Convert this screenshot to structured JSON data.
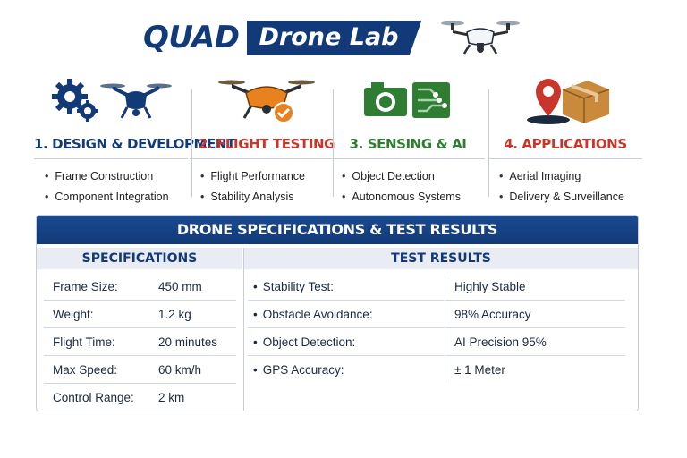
{
  "header": {
    "title_main": "QUAD",
    "title_banner": "Drone Lab"
  },
  "colors": {
    "navy": "#123a78",
    "red": "#c8352b",
    "green": "#2e7d32",
    "orange": "#e8821e"
  },
  "categories": [
    {
      "title": "1. DESIGN & DEVELOPMENT",
      "color": "#123a78",
      "icon": "gears-drone-icon",
      "items": [
        "Frame Construction",
        "Component Integration"
      ]
    },
    {
      "title": "2. FLIGHT TESTING",
      "color": "#c8352b",
      "icon": "drone-check-icon",
      "items": [
        "Flight Performance",
        "Stability Analysis"
      ]
    },
    {
      "title": "3. SENSING & AI",
      "color": "#2e7d32",
      "icon": "camera-circuit-icon",
      "items": [
        "Object Detection",
        "Autonomous Systems"
      ]
    },
    {
      "title": "4. APPLICATIONS",
      "color": "#c8352b",
      "icon": "pin-package-icon",
      "items": [
        "Aerial Imaging",
        "Delivery & Surveillance"
      ]
    }
  ],
  "results": {
    "title": "DRONE SPECIFICATIONS & TEST RESULTS",
    "spec_header": "SPECIFICATIONS",
    "test_header": "TEST RESULTS",
    "specs": [
      {
        "label": "Frame Size:",
        "value": "450 mm"
      },
      {
        "label": "Weight:",
        "value": "1.2 kg"
      },
      {
        "label": "Flight Time:",
        "value": "20 minutes"
      },
      {
        "label": "Max Speed:",
        "value": "60 km/h"
      },
      {
        "label": "Control Range:",
        "value": "2 km"
      }
    ],
    "tests": [
      {
        "label": "Stability Test:",
        "value": "Highly Stable"
      },
      {
        "label": "Obstacle Avoidance:",
        "value": "98% Accuracy"
      },
      {
        "label": "Object Detection:",
        "value": "AI Precision 95%"
      },
      {
        "label": "GPS Accuracy:",
        "value": "± 1 Meter"
      }
    ]
  }
}
